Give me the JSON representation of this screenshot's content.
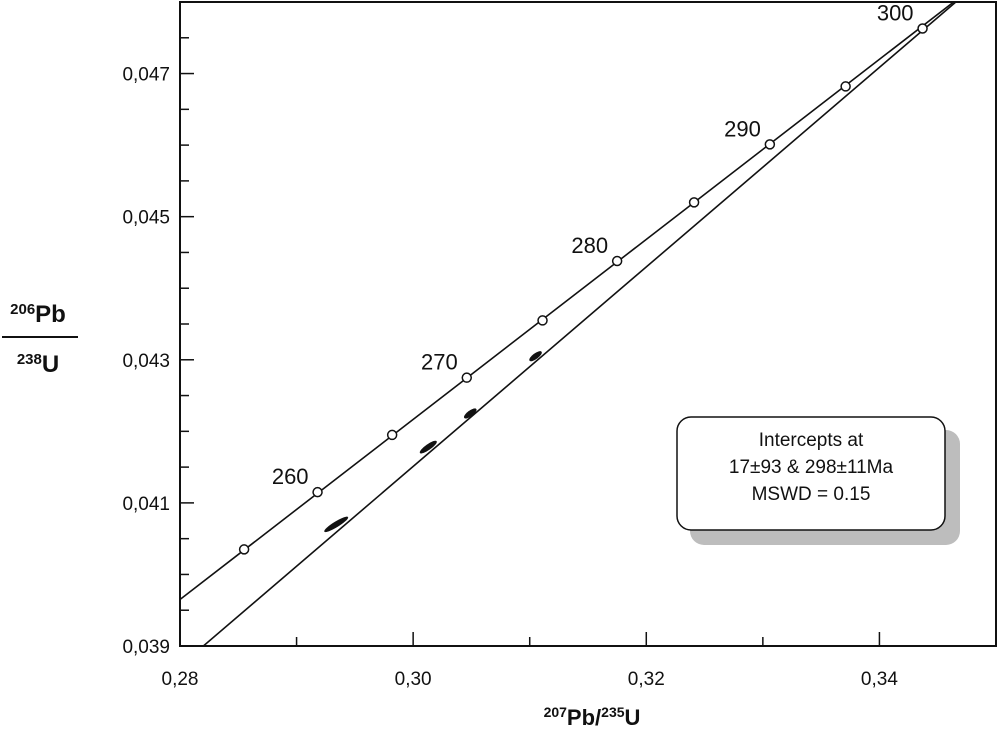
{
  "chart_data": {
    "type": "scatter",
    "subtype": "U-Pb concordia diagram",
    "xlabel": {
      "mass1": "207",
      "el1": "Pb",
      "mass2": "235",
      "el2": "U"
    },
    "ylabel": {
      "num_mass": "206",
      "num_el": "Pb",
      "den_mass": "238",
      "den_el": "U"
    },
    "xlim": [
      0.28,
      0.35
    ],
    "ylim": [
      0.039,
      0.048
    ],
    "x_ticks": [
      {
        "value": 0.28,
        "label": "0,28"
      },
      {
        "value": 0.3,
        "label": "0,30"
      },
      {
        "value": 0.32,
        "label": "0,32"
      },
      {
        "value": 0.34,
        "label": "0,34"
      }
    ],
    "y_ticks": [
      {
        "value": 0.039,
        "label": "0,039"
      },
      {
        "value": 0.041,
        "label": "0,041"
      },
      {
        "value": 0.043,
        "label": "0,043"
      },
      {
        "value": 0.045,
        "label": "0,045"
      },
      {
        "value": 0.047,
        "label": "0,047"
      }
    ],
    "concordia_points": [
      {
        "age": 255,
        "x": 0.2855,
        "y": 0.04035,
        "label": ""
      },
      {
        "age": 260,
        "x": 0.2918,
        "y": 0.04115,
        "label": "260"
      },
      {
        "age": 265,
        "x": 0.2982,
        "y": 0.04195,
        "label": ""
      },
      {
        "age": 270,
        "x": 0.3046,
        "y": 0.04275,
        "label": "270"
      },
      {
        "age": 275,
        "x": 0.3111,
        "y": 0.04355,
        "label": ""
      },
      {
        "age": 280,
        "x": 0.3175,
        "y": 0.04438,
        "label": "280"
      },
      {
        "age": 285,
        "x": 0.3241,
        "y": 0.0452,
        "label": ""
      },
      {
        "age": 290,
        "x": 0.3306,
        "y": 0.04601,
        "label": "290"
      },
      {
        "age": 295,
        "x": 0.3371,
        "y": 0.04682,
        "label": ""
      },
      {
        "age": 300,
        "x": 0.3437,
        "y": 0.04763,
        "label": "300"
      }
    ],
    "concordia_curve_endpoints": [
      {
        "x": 0.28,
        "y": 0.03965
      },
      {
        "x": 0.3505,
        "y": 0.04852
      }
    ],
    "discordia_line_endpoints": [
      {
        "x": 0.281,
        "y": 0.03886
      },
      {
        "x": 0.3505,
        "y": 0.04855
      }
    ],
    "error_ellipses": [
      {
        "x": 0.2934,
        "y": 0.0407,
        "dx": 0.001,
        "dy": 0.0001
      },
      {
        "x": 0.3013,
        "y": 0.04178,
        "dx": 0.0007,
        "dy": 8e-05
      },
      {
        "x": 0.3049,
        "y": 0.04225,
        "dx": 0.0005,
        "dy": 6e-05
      },
      {
        "x": 0.3105,
        "y": 0.04305,
        "dx": 0.0005,
        "dy": 6e-05
      }
    ],
    "annotation": {
      "line1": "Intercepts at",
      "line2": "17±93 & 298±11Ma",
      "line3": "MSWD = 0.15"
    }
  }
}
